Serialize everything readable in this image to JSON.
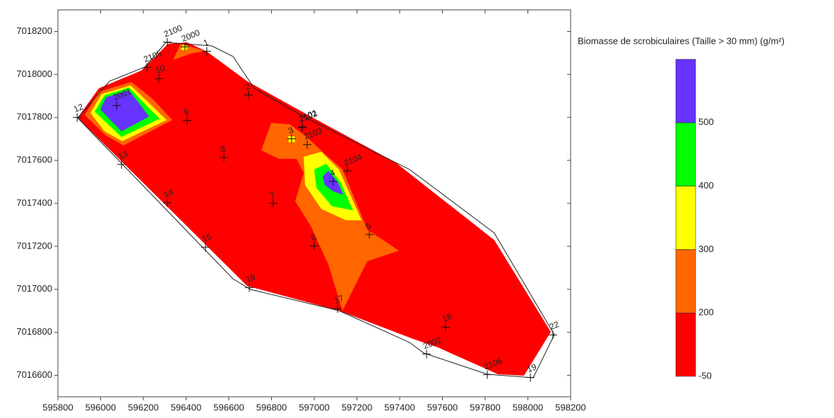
{
  "chart_data": {
    "type": "contour",
    "xlim": [
      595800,
      598200
    ],
    "ylim": [
      7016500,
      7018300
    ],
    "xticks": [
      595800,
      596000,
      596200,
      596400,
      596600,
      596800,
      597000,
      597200,
      597400,
      597600,
      597800,
      598000,
      598200
    ],
    "yticks": [
      7016600,
      7016800,
      7017000,
      7017200,
      7017400,
      7017600,
      7017800,
      7018000,
      7018200
    ],
    "stations": [
      {
        "label": "12",
        "x": 595890,
        "y": 7017800
      },
      {
        "label": "2001",
        "x": 596075,
        "y": 7017855
      },
      {
        "label": "2105",
        "x": 596217,
        "y": 7018032
      },
      {
        "label": "10",
        "x": 596273,
        "y": 7017980
      },
      {
        "label": "2100",
        "x": 596312,
        "y": 7018150
      },
      {
        "label": "2000",
        "x": 596395,
        "y": 7018128
      },
      {
        "label": "1",
        "x": 596497,
        "y": 7018108
      },
      {
        "label": "2",
        "x": 596692,
        "y": 7017904
      },
      {
        "label": "9",
        "x": 596405,
        "y": 7017785
      },
      {
        "label": "13",
        "x": 596098,
        "y": 7017581
      },
      {
        "label": "8",
        "x": 596577,
        "y": 7017614
      },
      {
        "label": "14",
        "x": 596312,
        "y": 7017403
      },
      {
        "label": "7",
        "x": 596808,
        "y": 7017400
      },
      {
        "label": "2101",
        "x": 596944,
        "y": 7017756
      },
      {
        "label": "2102",
        "x": 596944,
        "y": 7017752
      },
      {
        "label": "2103",
        "x": 596967,
        "y": 7017673
      },
      {
        "label": "3",
        "x": 596894,
        "y": 7017700
      },
      {
        "label": "2104",
        "x": 597155,
        "y": 7017551
      },
      {
        "label": "4",
        "x": 597089,
        "y": 7017502
      },
      {
        "label": "5",
        "x": 597258,
        "y": 7017255
      },
      {
        "label": "6",
        "x": 597000,
        "y": 7017202
      },
      {
        "label": "15",
        "x": 596491,
        "y": 7017196
      },
      {
        "label": "16",
        "x": 596696,
        "y": 7017008
      },
      {
        "label": "17",
        "x": 597109,
        "y": 7016910
      },
      {
        "label": "18",
        "x": 597615,
        "y": 7016824
      },
      {
        "label": "2002",
        "x": 597526,
        "y": 7016699
      },
      {
        "label": "2106",
        "x": 597810,
        "y": 7016603
      },
      {
        "label": "19",
        "x": 598012,
        "y": 7016590
      },
      {
        "label": "22",
        "x": 598117,
        "y": 7016788
      }
    ],
    "legend": {
      "title": "Biomasse de scrobiculaires (Taille > 30 mm) (g/m²)",
      "levels": [
        -50,
        200,
        300,
        400,
        500
      ],
      "colors": [
        "#ff0000",
        "#ff6600",
        "#ffff00",
        "#00ff00",
        "#6633ff"
      ]
    }
  }
}
